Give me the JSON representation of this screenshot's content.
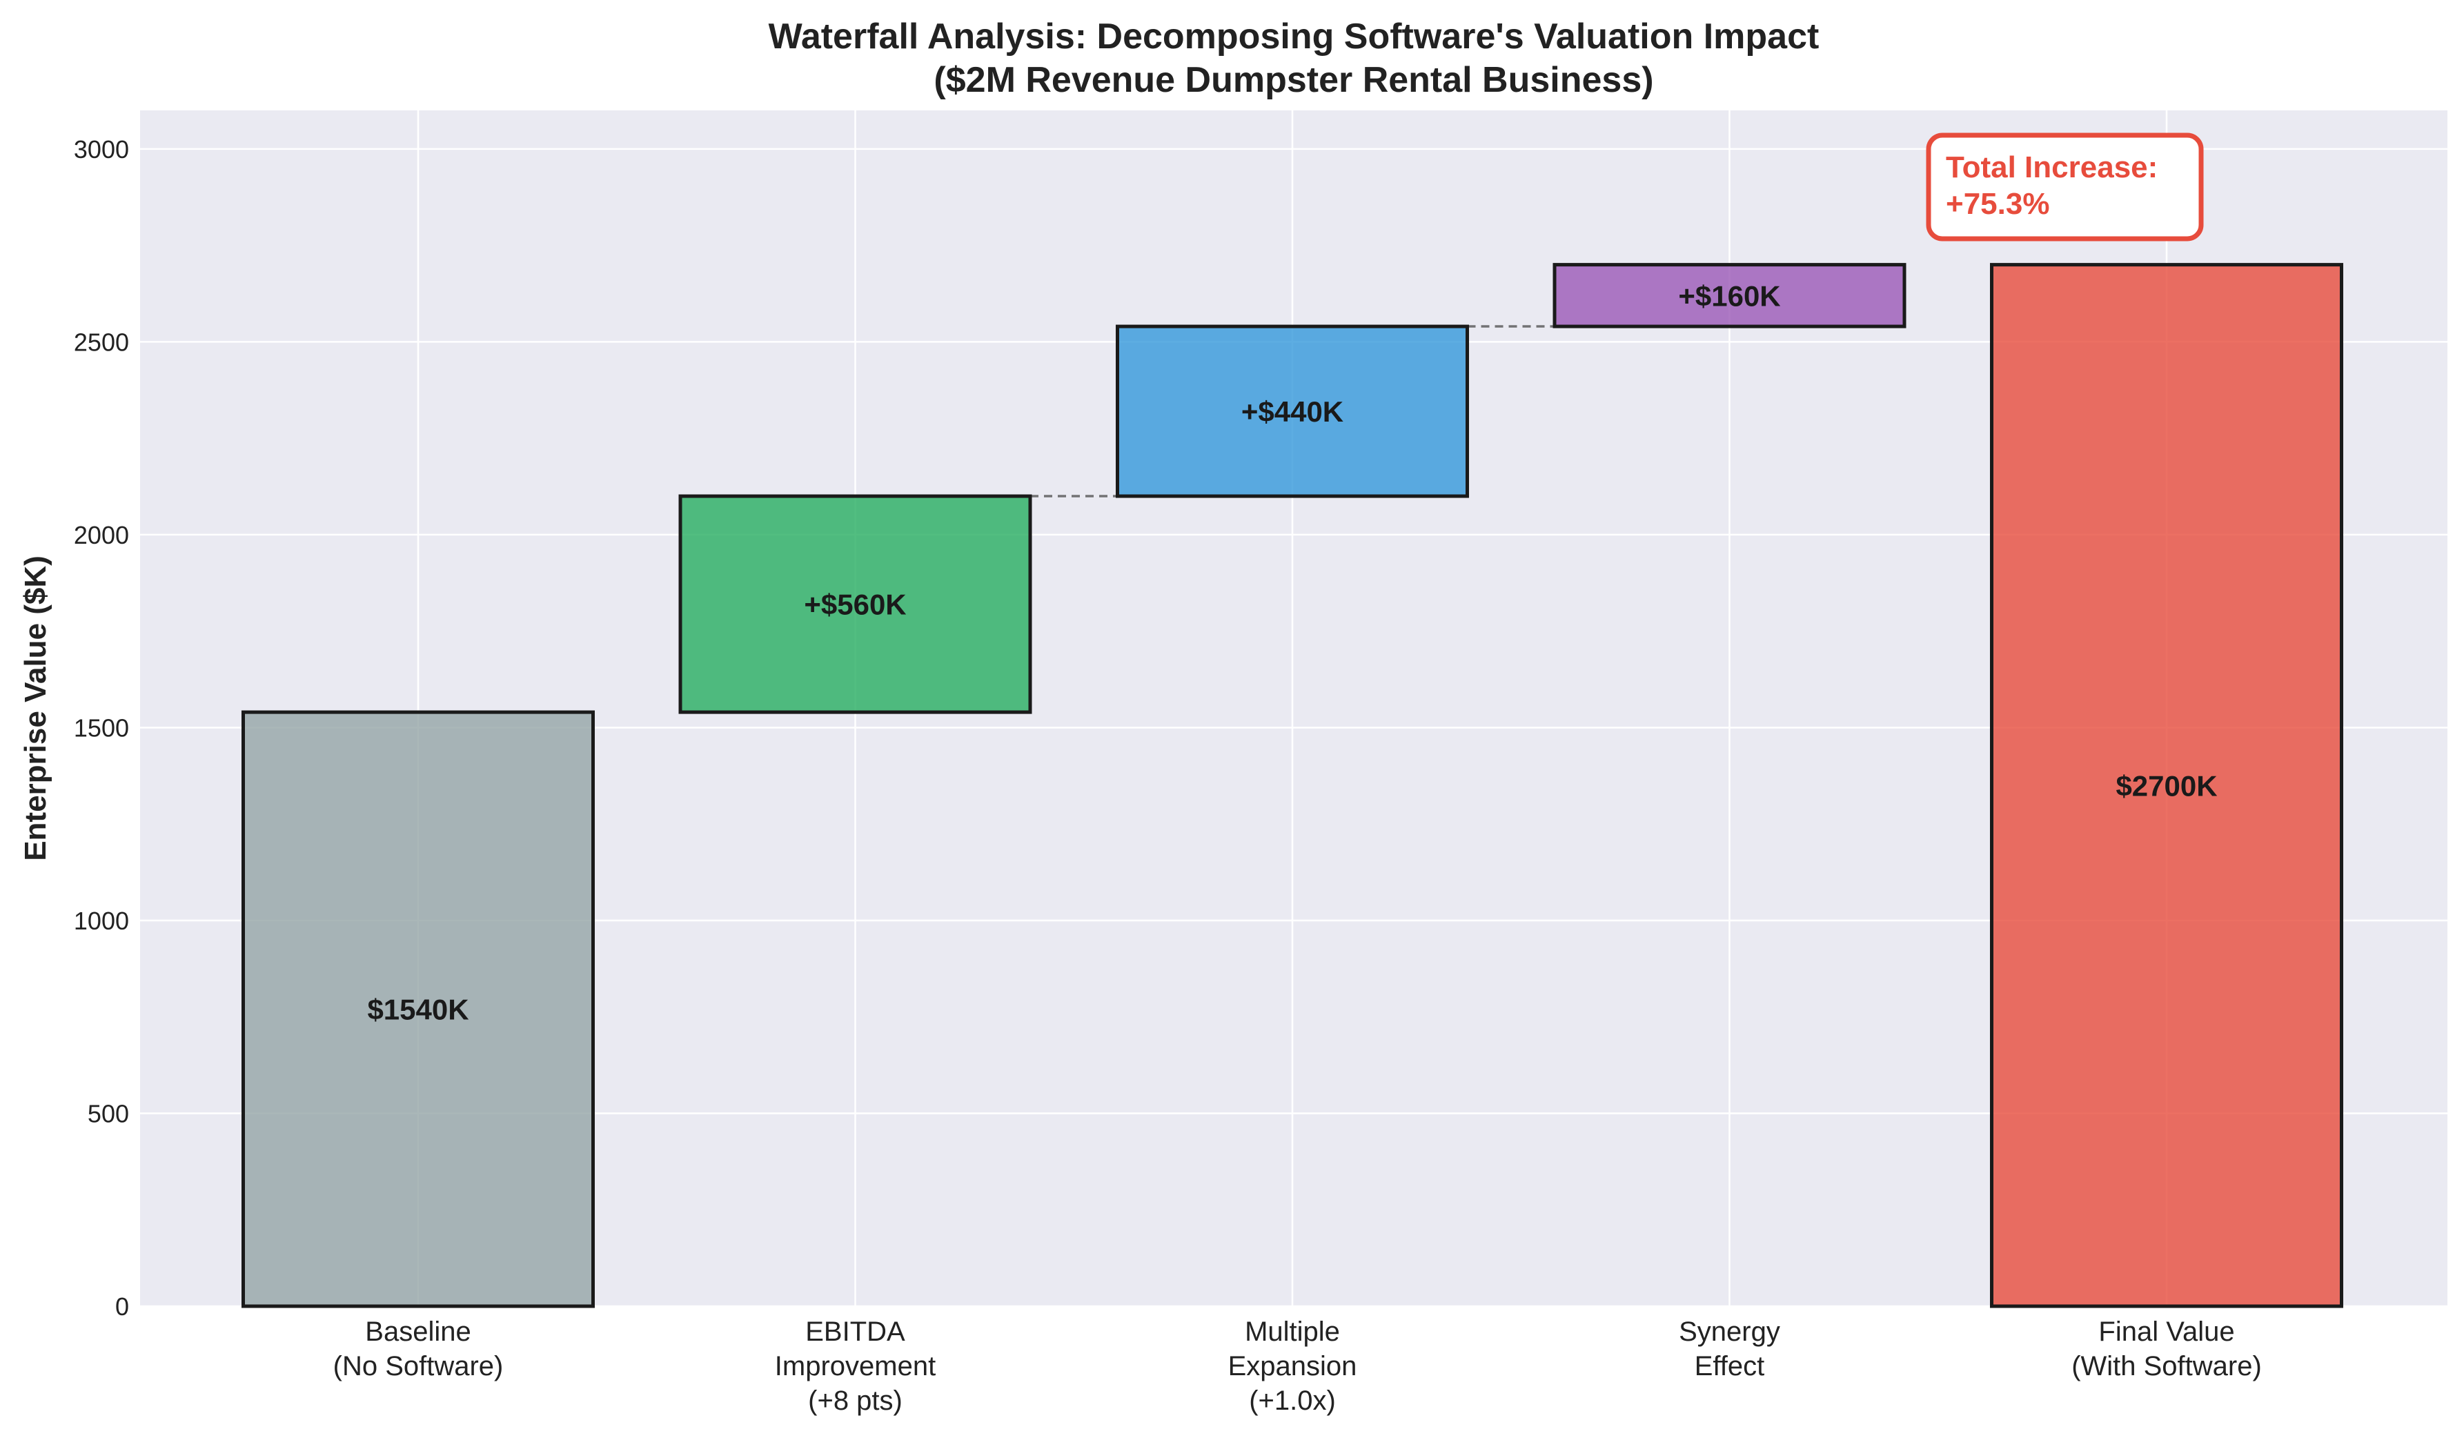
{
  "chart_data": {
    "type": "waterfall",
    "title": "Waterfall Analysis: Decomposing Software's Valuation Impact",
    "subtitle": "($2M Revenue Dumpster Rental Business)",
    "xlabel": "",
    "ylabel": "Enterprise Value ($K)",
    "ylim": [
      0,
      3100
    ],
    "yticks": [
      0,
      500,
      1000,
      1500,
      2000,
      2500,
      3000
    ],
    "grid": true,
    "categories": [
      [
        "Baseline",
        "(No Software)"
      ],
      [
        "EBITDA",
        "Improvement",
        "(+8 pts)"
      ],
      [
        "Multiple",
        "Expansion",
        "(+1.0x)"
      ],
      [
        "Synergy",
        "Effect"
      ],
      [
        "Final Value",
        "(With Software)"
      ]
    ],
    "bars": [
      {
        "kind": "total",
        "start": 0,
        "end": 1540,
        "label": "$1540K",
        "color": "#95a5a6"
      },
      {
        "kind": "increase",
        "start": 1540,
        "end": 2100,
        "label": "+$560K",
        "color": "#27ae60"
      },
      {
        "kind": "increase",
        "start": 2100,
        "end": 2540,
        "label": "+$440K",
        "color": "#3498db"
      },
      {
        "kind": "increase",
        "start": 2540,
        "end": 2700,
        "label": "+$160K",
        "color": "#9b59b6"
      },
      {
        "kind": "total",
        "start": 0,
        "end": 2700,
        "label": "$2700K",
        "color": "#e74c3c"
      }
    ],
    "connectors": [
      2100,
      2540
    ],
    "annotation": {
      "lines": [
        "Total Increase:",
        "+75.3%"
      ],
      "color": "#e74c3c",
      "placement": "top-right"
    }
  }
}
